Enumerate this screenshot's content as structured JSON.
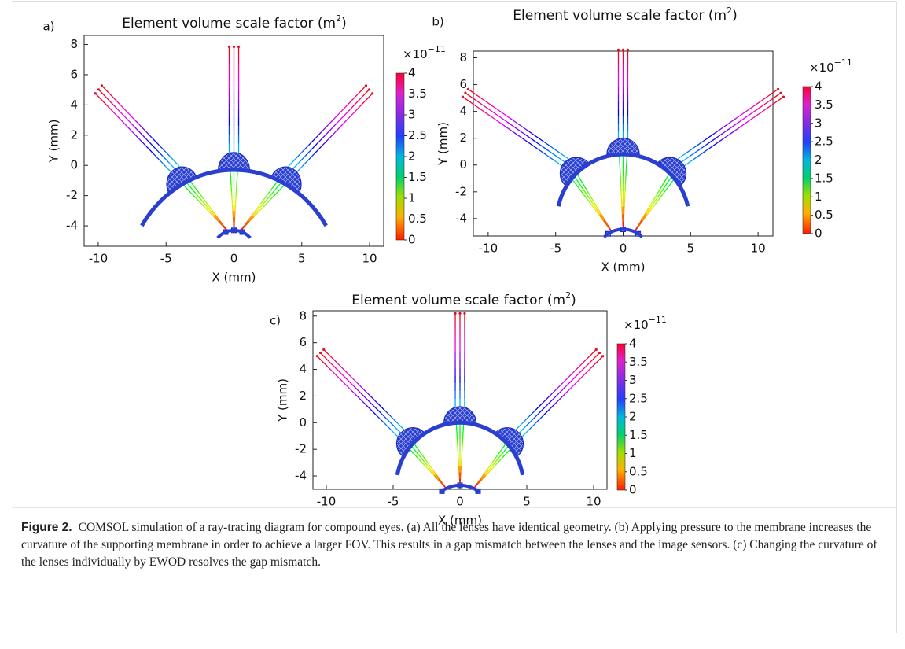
{
  "chart_data": [
    {
      "type": "ray-diagram",
      "panel_label": "a)",
      "title": "Element volume scale factor (m",
      "title_sup": "2",
      "title_close": ")",
      "x_label": "X (mm)",
      "y_label": "Y (mm)",
      "xlim": [
        -11.04,
        11.04
      ],
      "xticks": [
        -10,
        -5,
        0,
        5,
        10
      ],
      "ylim": [
        -5.35,
        8.6
      ],
      "yticks": [
        -4,
        -2,
        0,
        2,
        4,
        6,
        8
      ],
      "colorbar": {
        "multiplier": "×10",
        "multiplier_exp": "−11",
        "lim": [
          0,
          4
        ],
        "ticks": [
          0,
          0.5,
          1,
          1.5,
          2,
          2.5,
          3,
          3.5,
          4
        ]
      }
    },
    {
      "type": "ray-diagram",
      "panel_label": "b)",
      "title": "Element volume scale factor (m",
      "title_sup": "2",
      "title_close": ")",
      "x_label": "X (mm)",
      "y_label": "Y (mm)",
      "xlim": [
        -11.1,
        11.1
      ],
      "xticks": [
        -10,
        -5,
        0,
        5,
        10
      ],
      "ylim": [
        -5.3,
        8.5
      ],
      "yticks": [
        -4,
        -2,
        0,
        2,
        4,
        6,
        8
      ],
      "colorbar": {
        "multiplier": "×10",
        "multiplier_exp": "−11",
        "lim": [
          0,
          4
        ],
        "ticks": [
          0,
          0.5,
          1,
          1.5,
          2,
          2.5,
          3,
          3.5,
          4
        ]
      }
    },
    {
      "type": "ray-diagram",
      "panel_label": "c)",
      "title": "Element volume scale factor (m",
      "title_sup": "2",
      "title_close": ")",
      "x_label": "X (mm)",
      "y_label": "Y (mm)",
      "xlim": [
        -11,
        11
      ],
      "xticks": [
        -10,
        -5,
        0,
        5,
        10
      ],
      "ylim": [
        -5.0,
        8.4
      ],
      "yticks": [
        -4,
        -2,
        0,
        2,
        4,
        6,
        8
      ],
      "colorbar": {
        "multiplier": "×10",
        "multiplier_exp": "−11",
        "lim": [
          0,
          4
        ],
        "ticks": [
          0,
          0.5,
          1,
          1.5,
          2,
          2.5,
          3,
          3.5,
          4
        ]
      }
    }
  ],
  "caption": {
    "label": "Figure 2.",
    "text": "COMSOL simulation of a ray-tracing diagram for compound eyes. (a) All the lenses have identical geometry. (b) Applying pressure to the membrane increases the curvature of the supporting membrane in order to achieve a larger FOV. This results in a gap mismatch between the lenses and the image sensors. (c) Changing the curvature of the lenses individually by EWOD resolves the gap mismatch."
  }
}
